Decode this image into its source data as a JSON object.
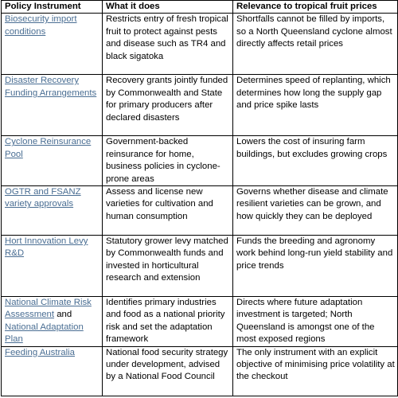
{
  "table": {
    "header": [
      "Policy Instrument",
      "What it does",
      "Relevance to tropical fruit prices"
    ],
    "rows": [
      {
        "instrument": [
          {
            "text": "Biosecurity import conditions",
            "link": true
          }
        ],
        "what": "Restricts entry of fresh tropical fruit to protect against pests and disease such as TR4 and black sigatoka",
        "relevance": "Shortfalls cannot be filled by imports, so a North Queensland cyclone almost directly affects retail prices"
      },
      {
        "instrument": [
          {
            "text": "Disaster Recovery Funding Arrangements",
            "link": true
          }
        ],
        "what": "Recovery grants jointly funded by Commonwealth and State for primary producers after declared disasters",
        "relevance": "Determines speed of replanting, which determines how long the supply gap and price spike lasts"
      },
      {
        "instrument": [
          {
            "text": "Cyclone Reinsurance Pool",
            "link": true
          }
        ],
        "what": "Government-backed reinsurance for home, business policies in cyclone-prone areas",
        "relevance": "Lowers the cost of insuring farm buildings, but excludes growing crops"
      },
      {
        "instrument": [
          {
            "text": "OGTR and FSANZ variety approvals",
            "link": true
          }
        ],
        "what": "Assess and license new varieties for cultivation and human consumption",
        "relevance": "Governs whether disease and climate resilient varieties can be grown, and how quickly they can be deployed"
      },
      {
        "instrument": [
          {
            "text": "Hort Innovation Levy R&D",
            "link": true
          }
        ],
        "what": "Statutory grower levy matched by Commonwealth funds and invested in horticultural research and extension",
        "relevance": "Funds the breeding and agronomy work behind long-run yield stability and price trends"
      },
      {
        "instrument": [
          {
            "text": "National Climate Risk Assessment",
            "link": true
          },
          {
            "text": "and",
            "link": false
          },
          {
            "text": "National Adaptation Plan",
            "link": true
          }
        ],
        "what": "Identifies primary industries and food as a national priority risk and set the adaptation framework",
        "relevance": "Directs where future adaptation investment is targeted; North Queensland is amongst one of the most exposed regions"
      },
      {
        "instrument": [
          {
            "text": "Feeding Australia",
            "link": true
          }
        ],
        "what": "National food security strategy under development, advised by a National Food Council",
        "relevance": "The only instrument with an explicit objective of minimising price volatility at the checkout"
      }
    ]
  }
}
